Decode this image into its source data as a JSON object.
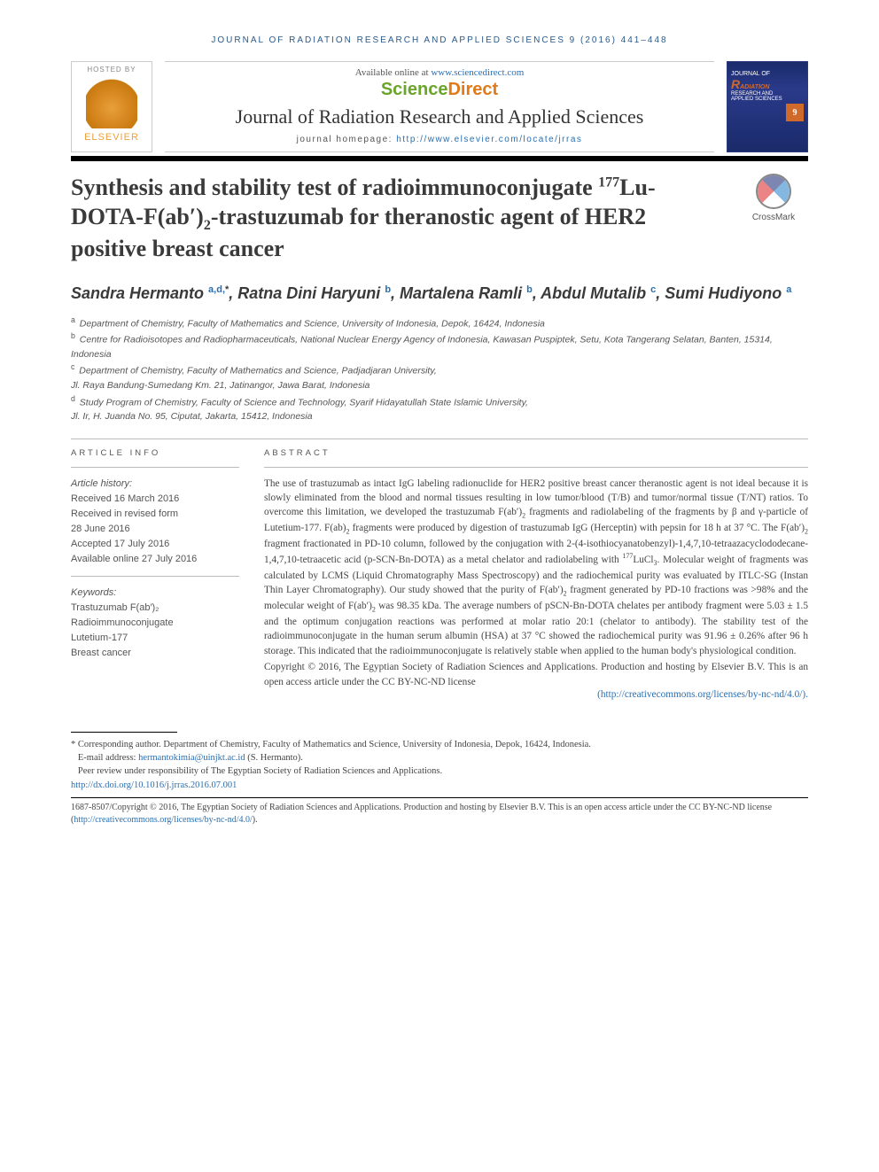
{
  "running_head": "Journal of Radiation Research and Applied Sciences 9 (2016) 441–448",
  "header": {
    "hosted_by": "HOSTED BY",
    "elsevier": "ELSEVIER",
    "available_prefix": "Available online at ",
    "available_url": "www.sciencedirect.com",
    "sd_sci": "Science",
    "sd_dir": "Direct",
    "journal_name": "Journal of Radiation Research and Applied Sciences",
    "homepage_label": "journal homepage: ",
    "homepage_url": "http://www.elsevier.com/locate/jrras",
    "cover_issue": "9"
  },
  "crossmark": "CrossMark",
  "title_html": "Synthesis and stability test of radioimmunoconjugate <sup>177</sup>Lu-DOTA-F(ab′)<sub>2</sub>-trastuzumab for theranostic agent of HER2 positive breast cancer",
  "authors_html": "Sandra Hermanto <sup class='sup-link'>a,d,</sup><sup>*</sup>, Ratna Dini Haryuni <sup class='sup-link'>b</sup>, Martalena Ramli <sup class='sup-link'>b</sup>, Abdul Mutalib <sup class='sup-link'>c</sup>, Sumi Hudiyono <sup class='sup-link'>a</sup>",
  "affiliations": {
    "a": "Department of Chemistry, Faculty of Mathematics and Science, University of Indonesia, Depok, 16424, Indonesia",
    "b": "Centre for Radioisotopes and Radiopharmaceuticals, National Nuclear Energy Agency of Indonesia, Kawasan Puspiptek, Setu, Kota Tangerang Selatan, Banten, 15314, Indonesia",
    "c1": "Department of Chemistry, Faculty of Mathematics and Science, Padjadjaran University,",
    "c2": "Jl. Raya Bandung-Sumedang Km. 21, Jatinangor, Jawa Barat, Indonesia",
    "d1": "Study Program of Chemistry, Faculty of Science and Technology, Syarif Hidayatullah State Islamic University,",
    "d2": "Jl. Ir, H. Juanda No. 95, Ciputat, Jakarta, 15412, Indonesia"
  },
  "article_info": {
    "heading": "ARTICLE INFO",
    "history_label": "Article history:",
    "received": "Received 16 March 2016",
    "revised1": "Received in revised form",
    "revised2": "28 June 2016",
    "accepted": "Accepted 17 July 2016",
    "online": "Available online 27 July 2016",
    "kw_label": "Keywords:",
    "kw1": "Trastuzumab F(ab′)₂",
    "kw2": "Radioimmunoconjugate",
    "kw3": "Lutetium-177",
    "kw4": "Breast cancer"
  },
  "abstract": {
    "heading": "ABSTRACT",
    "body_html": "The use of trastuzumab as intact IgG labeling radionuclide for HER2 positive breast cancer theranostic agent is not ideal because it is slowly eliminated from the blood and normal tissues resulting in low tumor/blood (T/B) and tumor/normal tissue (T/NT) ratios. To overcome this limitation, we developed the trastuzumab F(ab′)<sub>2</sub> fragments and radiolabeling of the fragments by β and γ-particle of Lutetium-177. F(ab)<sub>2</sub> fragments were produced by digestion of trastuzumab IgG (Herceptin) with pepsin for 18 h at 37 °C. The F(ab′)<sub>2</sub> fragment fractionated in PD-10 column, followed by the conjugation with 2-(4-isothiocyanatobenzyl)-1,4,7,10-tetraazacyclododecane-1,4,7,10-tetraacetic acid (p-SCN-Bn-DOTA) as a metal chelator and radiolabeling with <sup>177</sup>LuCl<sub>3</sub>. Molecular weight of fragments was calculated by LCMS (Liquid Chromatography Mass Spectroscopy) and the radiochemical purity was evaluated by ITLC-SG (Instan Thin Layer Chromatography). Our study showed that the purity of F(ab′)<sub>2</sub> fragment generated by PD-10 fractions was >98% and the molecular weight of F(ab′)<sub>2</sub> was 98.35 kDa. The average numbers of pSCN-Bn-DOTA chelates per antibody fragment were 5.03 ± 1.5 and the optimum conjugation reactions was performed at molar ratio 20:1 (chelator to antibody). The stability test of the radioimmunoconjugate in the human serum albumin (HSA) at 37 °C showed the radiochemical purity was 91.96 ± 0.26% after 96 h storage. This indicated that the radioimmunoconjugate is relatively stable when applied to the human body's physiological condition.",
    "copyright": "Copyright © 2016, The Egyptian Society of Radiation Sciences and Applications. Production and hosting by Elsevier B.V. This is an open access article under the CC BY-NC-ND license",
    "license_url_display": "(http://creativecommons.org/licenses/by-nc-nd/4.0/)."
  },
  "footnotes": {
    "corr": "* Corresponding author. Department of Chemistry, Faculty of Mathematics and Science, University of Indonesia, Depok, 16424, Indonesia.",
    "email_label": "E-mail address: ",
    "email": "hermantokimia@uinjkt.ac.id",
    "email_suffix": " (S. Hermanto).",
    "peer": "Peer review under responsibility of The Egyptian Society of Radiation Sciences and Applications.",
    "doi": "http://dx.doi.org/10.1016/j.jrras.2016.07.001"
  },
  "footer": {
    "line1": "1687-8507/Copyright © 2016, The Egyptian Society of Radiation Sciences and Applications. Production and hosting by Elsevier B.V. This is an open access article under the CC BY-NC-ND license (",
    "url": "http://creativecommons.org/licenses/by-nc-nd/4.0/",
    "line1_end": ")."
  },
  "colors": {
    "link": "#2a6fb0",
    "elsevier_orange": "#e8a03a",
    "sd_green": "#6aa52a",
    "sd_orange": "#e07a1a",
    "cover_bg": "#1a2a6a",
    "text": "#3a3a3a"
  },
  "typography": {
    "title_pt": 26,
    "authors_pt": 18,
    "body_pt": 11.3,
    "affil_pt": 10.5,
    "running_head_pt": 10
  }
}
